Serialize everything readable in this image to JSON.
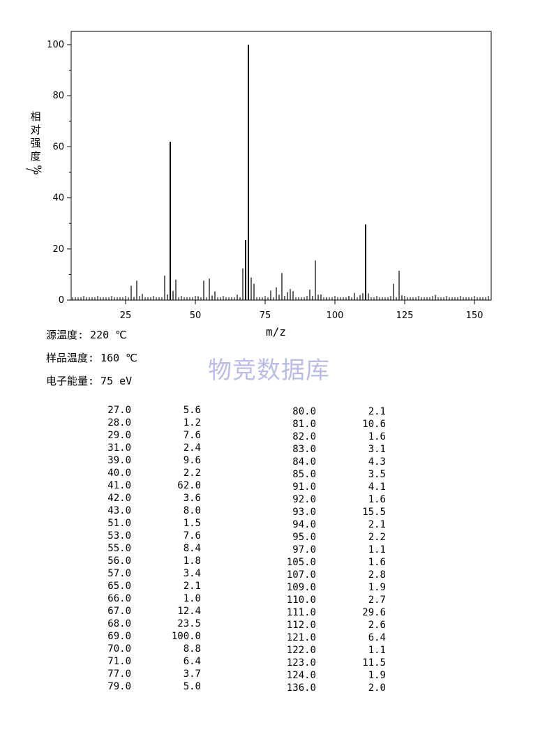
{
  "chart_data": {
    "type": "bar",
    "xlabel": "m/z",
    "ylabel": "相对强度/%",
    "xlim": [
      5,
      160
    ],
    "ylim": [
      0,
      100
    ],
    "xticks": [
      25,
      50,
      75,
      100,
      125,
      150
    ],
    "yticks": [
      0,
      20,
      40,
      60,
      80,
      100
    ],
    "peaks": [
      {
        "mz": 27.0,
        "intensity": 5.6
      },
      {
        "mz": 28.0,
        "intensity": 1.2
      },
      {
        "mz": 29.0,
        "intensity": 7.6
      },
      {
        "mz": 31.0,
        "intensity": 2.4
      },
      {
        "mz": 39.0,
        "intensity": 9.6
      },
      {
        "mz": 40.0,
        "intensity": 2.2
      },
      {
        "mz": 41.0,
        "intensity": 62.0
      },
      {
        "mz": 42.0,
        "intensity": 3.6
      },
      {
        "mz": 43.0,
        "intensity": 8.0
      },
      {
        "mz": 51.0,
        "intensity": 1.5
      },
      {
        "mz": 53.0,
        "intensity": 7.6
      },
      {
        "mz": 55.0,
        "intensity": 8.4
      },
      {
        "mz": 56.0,
        "intensity": 1.8
      },
      {
        "mz": 57.0,
        "intensity": 3.4
      },
      {
        "mz": 65.0,
        "intensity": 2.1
      },
      {
        "mz": 66.0,
        "intensity": 1.0
      },
      {
        "mz": 67.0,
        "intensity": 12.4
      },
      {
        "mz": 68.0,
        "intensity": 23.5
      },
      {
        "mz": 69.0,
        "intensity": 100.0
      },
      {
        "mz": 70.0,
        "intensity": 8.8
      },
      {
        "mz": 71.0,
        "intensity": 6.4
      },
      {
        "mz": 77.0,
        "intensity": 3.7
      },
      {
        "mz": 79.0,
        "intensity": 5.0
      },
      {
        "mz": 80.0,
        "intensity": 2.1
      },
      {
        "mz": 81.0,
        "intensity": 10.6
      },
      {
        "mz": 82.0,
        "intensity": 1.6
      },
      {
        "mz": 83.0,
        "intensity": 3.1
      },
      {
        "mz": 84.0,
        "intensity": 4.3
      },
      {
        "mz": 85.0,
        "intensity": 3.5
      },
      {
        "mz": 91.0,
        "intensity": 4.1
      },
      {
        "mz": 92.0,
        "intensity": 1.6
      },
      {
        "mz": 93.0,
        "intensity": 15.5
      },
      {
        "mz": 94.0,
        "intensity": 2.1
      },
      {
        "mz": 95.0,
        "intensity": 2.2
      },
      {
        "mz": 97.0,
        "intensity": 1.1
      },
      {
        "mz": 105.0,
        "intensity": 1.6
      },
      {
        "mz": 107.0,
        "intensity": 2.8
      },
      {
        "mz": 109.0,
        "intensity": 1.9
      },
      {
        "mz": 110.0,
        "intensity": 2.7
      },
      {
        "mz": 111.0,
        "intensity": 29.6
      },
      {
        "mz": 112.0,
        "intensity": 2.6
      },
      {
        "mz": 121.0,
        "intensity": 6.4
      },
      {
        "mz": 122.0,
        "intensity": 1.1
      },
      {
        "mz": 123.0,
        "intensity": 11.5
      },
      {
        "mz": 124.0,
        "intensity": 1.9
      },
      {
        "mz": 136.0,
        "intensity": 2.0
      }
    ]
  },
  "conditions": {
    "source_temp": "源温度: 220 ℃",
    "sample_temp": "样品温度: 160 ℃",
    "electron_energy": "电子能量: 75 eV"
  },
  "watermark": "物竞数据库",
  "table": {
    "left": {
      "mz": [
        "27.0",
        "28.0",
        "29.0",
        "31.0",
        "39.0",
        "40.0",
        "41.0",
        "42.0",
        "43.0",
        "51.0",
        "53.0",
        "55.0",
        "56.0",
        "57.0",
        "65.0",
        "66.0",
        "67.0",
        "68.0",
        "69.0",
        "70.0",
        "71.0",
        "77.0",
        "79.0"
      ],
      "intensity": [
        "5.6",
        "1.2",
        "7.6",
        "2.4",
        "9.6",
        "2.2",
        "62.0",
        "3.6",
        "8.0",
        "1.5",
        "7.6",
        "8.4",
        "1.8",
        "3.4",
        "2.1",
        "1.0",
        "12.4",
        "23.5",
        "100.0",
        "8.8",
        "6.4",
        "3.7",
        "5.0"
      ]
    },
    "right": {
      "mz": [
        "80.0",
        "81.0",
        "82.0",
        "83.0",
        "84.0",
        "85.0",
        "91.0",
        "92.0",
        "93.0",
        "94.0",
        "95.0",
        "97.0",
        "105.0",
        "107.0",
        "109.0",
        "110.0",
        "111.0",
        "112.0",
        "121.0",
        "122.0",
        "123.0",
        "124.0",
        "136.0"
      ],
      "intensity": [
        "2.1",
        "10.6",
        "1.6",
        "3.1",
        "4.3",
        "3.5",
        "4.1",
        "1.6",
        "15.5",
        "2.1",
        "2.2",
        "1.1",
        "1.6",
        "2.8",
        "1.9",
        "2.7",
        "29.6",
        "2.6",
        "6.4",
        "1.1",
        "11.5",
        "1.9",
        "2.0"
      ]
    }
  }
}
